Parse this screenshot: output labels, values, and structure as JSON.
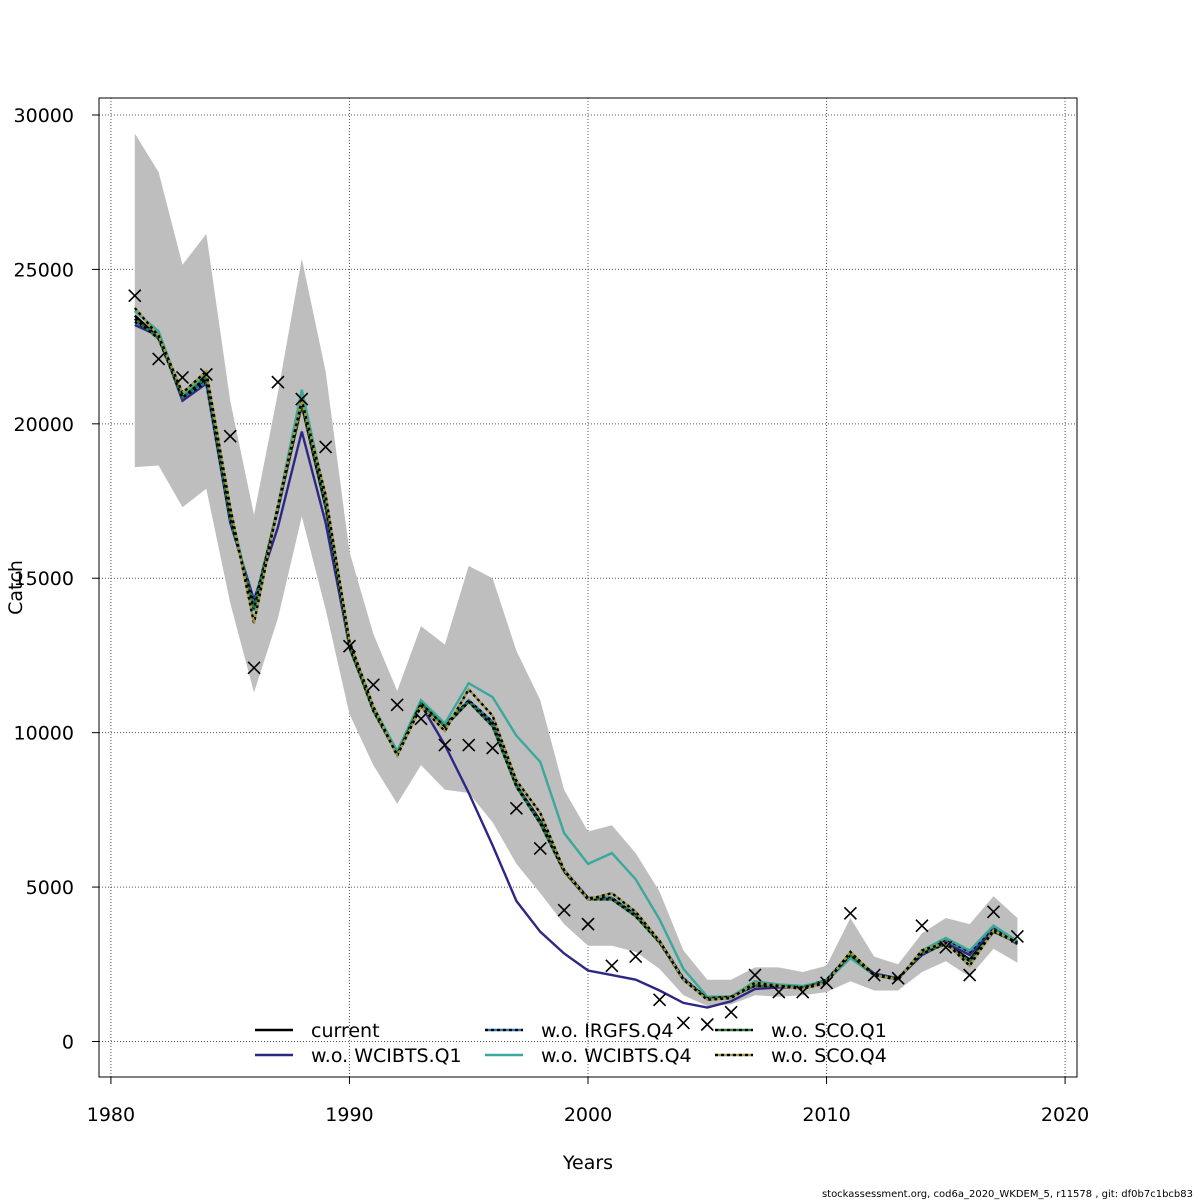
{
  "chart_data": {
    "type": "line",
    "xlabel": "Years",
    "ylabel": "Catch",
    "xlim": [
      1979.5,
      2020.5
    ],
    "ylim": [
      -1150,
      30550
    ],
    "xticks": [
      1980,
      1990,
      2000,
      2010,
      2020
    ],
    "yticks": [
      0,
      5000,
      10000,
      15000,
      20000,
      25000,
      30000
    ],
    "grid": true,
    "legend_position": "bottom-center",
    "x": [
      1981,
      1982,
      1983,
      1984,
      1985,
      1986,
      1987,
      1988,
      1989,
      1990,
      1991,
      1992,
      1993,
      1994,
      1995,
      1996,
      1997,
      1998,
      1999,
      2000,
      2001,
      2002,
      2003,
      2004,
      2005,
      2006,
      2007,
      2008,
      2009,
      2010,
      2011,
      2012,
      2013,
      2014,
      2015,
      2016,
      2017,
      2018
    ],
    "band": {
      "lower": [
        18600,
        18650,
        17300,
        17900,
        14200,
        11300,
        13700,
        17000,
        14000,
        10600,
        8950,
        7700,
        8950,
        8150,
        8050,
        7100,
        5750,
        4800,
        3800,
        3100,
        3100,
        2900,
        2350,
        1500,
        1150,
        1200,
        1500,
        1450,
        1500,
        1600,
        1950,
        1650,
        1650,
        2250,
        2600,
        2100,
        3000,
        2550
      ],
      "upper": [
        29400,
        28150,
        25150,
        26150,
        20750,
        17050,
        21000,
        25350,
        21700,
        15850,
        13200,
        11350,
        13450,
        12850,
        15400,
        15000,
        12650,
        11050,
        8150,
        6800,
        7000,
        6100,
        4850,
        2950,
        2000,
        2000,
        2400,
        2400,
        2250,
        2450,
        4000,
        2750,
        2500,
        3500,
        4000,
        3800,
        4700,
        4000
      ]
    },
    "observed": [
      24150,
      22100,
      21500,
      21600,
      19600,
      12100,
      21350,
      20800,
      19250,
      12800,
      11550,
      10900,
      10450,
      9600,
      9600,
      9500,
      7550,
      6250,
      4250,
      3800,
      2450,
      2750,
      1350,
      600,
      550,
      950,
      2150,
      1600,
      1600,
      1900,
      4150,
      2150,
      2050,
      3750,
      3050,
      2150,
      4200,
      3400
    ],
    "series": [
      {
        "name": "current",
        "color": "#000000",
        "dash": false,
        "values": [
          23500,
          22800,
          20900,
          21450,
          17000,
          14100,
          17250,
          20600,
          17300,
          12750,
          10750,
          9350,
          11000,
          10200,
          11000,
          10300,
          8300,
          7150,
          5550,
          4650,
          4650,
          4100,
          3250,
          2000,
          1400,
          1450,
          1800,
          1800,
          1750,
          1950,
          2800,
          2150,
          2050,
          2850,
          3200,
          2650,
          3600,
          3200
        ]
      },
      {
        "name": "w.o. WCIBTS.Q1",
        "color": "#2c2784",
        "dash": false,
        "values": [
          23200,
          22850,
          20750,
          21300,
          16800,
          14300,
          16650,
          19750,
          16800,
          12800,
          10750,
          9400,
          10900,
          9600,
          8050,
          6350,
          4550,
          3550,
          2850,
          2300,
          2150,
          2000,
          1650,
          1250,
          1100,
          1300,
          1700,
          1750,
          1750,
          1950,
          2800,
          2200,
          2050,
          2800,
          3200,
          2800,
          3650,
          3150
        ]
      },
      {
        "name": "w.o. IRGFS.Q4",
        "color": "#1f78b4",
        "dash": true,
        "values": [
          23300,
          22900,
          20850,
          21350,
          16900,
          14150,
          17200,
          20800,
          17350,
          12800,
          10800,
          9350,
          11000,
          10250,
          11050,
          10350,
          8300,
          7100,
          5550,
          4650,
          4650,
          4100,
          3250,
          2050,
          1400,
          1450,
          1900,
          1800,
          1750,
          2000,
          2850,
          2150,
          2000,
          2900,
          3300,
          2900,
          3700,
          3250
        ]
      },
      {
        "name": "w.o. WCIBTS.Q4",
        "color": "#3aa89a",
        "dash": false,
        "values": [
          23650,
          23000,
          20900,
          21600,
          17200,
          13950,
          17350,
          21100,
          17600,
          12950,
          10850,
          9400,
          11050,
          10300,
          11600,
          11150,
          9900,
          9050,
          6750,
          5750,
          6100,
          5250,
          3950,
          2350,
          1450,
          1450,
          1950,
          1850,
          1800,
          1950,
          2700,
          2150,
          2000,
          2950,
          3350,
          2950,
          3750,
          3250
        ]
      },
      {
        "name": "w.o. SCO.Q1",
        "color": "#1e7d32",
        "dash": true,
        "values": [
          23400,
          22750,
          20850,
          21500,
          17000,
          14000,
          17300,
          20650,
          17400,
          12800,
          10700,
          9300,
          10950,
          10200,
          11000,
          10200,
          8250,
          7050,
          5500,
          4600,
          4600,
          4050,
          3200,
          2000,
          1400,
          1450,
          1800,
          1800,
          1750,
          1950,
          2800,
          2150,
          2050,
          2850,
          3150,
          2600,
          3550,
          3200
        ]
      },
      {
        "name": "w.o. SCO.Q4",
        "color": "#a39a3c",
        "dash": true,
        "values": [
          23750,
          22850,
          21000,
          21700,
          17300,
          13550,
          17350,
          20750,
          17700,
          12950,
          10850,
          9250,
          10850,
          10050,
          11400,
          10550,
          8450,
          7400,
          5550,
          4600,
          4800,
          4200,
          3250,
          2000,
          1350,
          1400,
          1900,
          1800,
          1700,
          1900,
          2900,
          2150,
          2000,
          2950,
          3200,
          2450,
          3600,
          3200
        ]
      }
    ]
  },
  "footer": "stockassessment.org, cod6a_2020_WKDEM_5, r11578 , git: df0b7c1bcb83",
  "colors": {
    "band": "#bebebe",
    "grid": "#555555"
  }
}
